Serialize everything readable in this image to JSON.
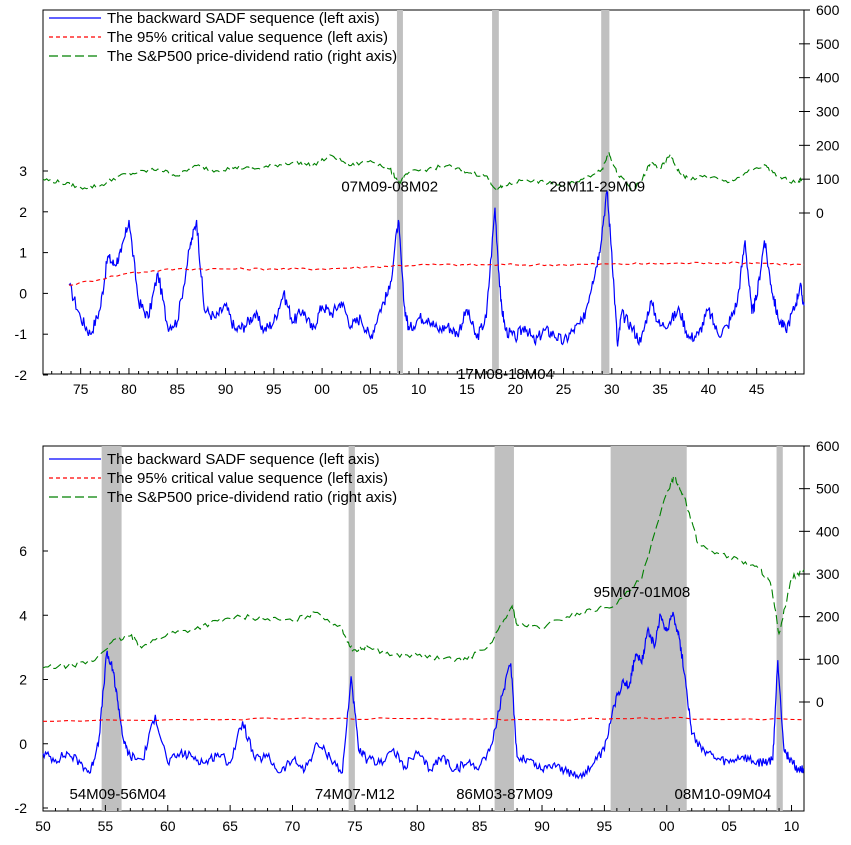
{
  "colors": {
    "sadf": "#0000ff",
    "critical": "#ff0000",
    "ratio": "#008000",
    "shade": "#c0c0c0",
    "axis": "#000000"
  },
  "legend": [
    {
      "label": "The backward SADF sequence (left axis)",
      "style": "solid",
      "color": "#0000ff"
    },
    {
      "label": "The 95% critical value sequence (left axis)",
      "style": "dashed",
      "color": "#ff0000"
    },
    {
      "label": "The S&P500 price-dividend ratio (right axis)",
      "style": "longdash",
      "color": "#008000"
    }
  ],
  "chart_data": [
    {
      "type": "line",
      "x_tick_labels": [
        "75",
        "80",
        "85",
        "90",
        "95",
        "00",
        "05",
        "10",
        "15",
        "20",
        "25",
        "30",
        "35",
        "40",
        "45"
      ],
      "x_range_years": [
        1871.1,
        1949.9
      ],
      "x_ticks_years": [
        1875,
        1880,
        1885,
        1890,
        1895,
        1900,
        1905,
        1910,
        1915,
        1920,
        1925,
        1930,
        1935,
        1940,
        1945
      ],
      "ylim_left": [
        -2,
        7
      ],
      "yticks_left": [
        -2,
        -1,
        0,
        1,
        2,
        3
      ],
      "ylim_right": [
        -100,
        600
      ],
      "yticks_right": [
        0,
        100,
        200,
        300,
        400,
        500,
        600
      ],
      "shaded_periods_years": [
        [
          1907.75,
          1908.17
        ],
        [
          1917.6,
          1918.3
        ],
        [
          1928.9,
          1929.75
        ]
      ],
      "annotations": [
        {
          "text": "07M09-08M02",
          "x": 1907.0,
          "y": 2.6
        },
        {
          "text": "28M11-29M09",
          "x": 1928.5,
          "y": 2.6
        },
        {
          "text": "17M08-18M04",
          "x": 1919.0,
          "y": -2.0
        }
      ],
      "series": [
        {
          "name": "The backward SADF sequence (left axis)",
          "axis": "left",
          "x": [
            1873.8,
            1875,
            1876,
            1877,
            1877.8,
            1878.5,
            1879.2,
            1880,
            1881,
            1882,
            1883,
            1884,
            1885,
            1886.3,
            1887,
            1887.8,
            1889,
            1890,
            1891,
            1892,
            1893,
            1894,
            1895,
            1896,
            1897,
            1898,
            1899,
            1900,
            1901,
            1902,
            1903,
            1904,
            1905,
            1906,
            1907,
            1907.9,
            1908.5,
            1909,
            1910,
            1911,
            1912,
            1913,
            1914,
            1915,
            1916,
            1917,
            1917.9,
            1918.5,
            1919,
            1920,
            1921,
            1922,
            1923,
            1924,
            1925,
            1926,
            1927,
            1928,
            1928.7,
            1929.5,
            1930,
            1930.6,
            1931,
            1932,
            1933,
            1934,
            1935,
            1936,
            1937,
            1938,
            1939,
            1940,
            1941,
            1942,
            1943,
            1943.8,
            1944.5,
            1945,
            1945.8,
            1946.5,
            1947.2,
            1948,
            1949,
            1949.5,
            1949.9
          ],
          "y": [
            0.2,
            -0.6,
            -1.0,
            -0.4,
            0.9,
            0.7,
            1.0,
            1.8,
            -0.2,
            -0.6,
            0.5,
            -0.8,
            -0.7,
            1.1,
            1.8,
            -0.4,
            -0.6,
            -0.3,
            -0.9,
            -0.8,
            -0.5,
            -0.9,
            -0.7,
            0.0,
            -0.7,
            -0.4,
            -0.9,
            -0.3,
            -0.5,
            -0.2,
            -0.8,
            -0.6,
            -1.1,
            -0.4,
            0.1,
            1.8,
            -0.3,
            -0.9,
            -0.6,
            -0.6,
            -0.9,
            -0.8,
            -1.0,
            -0.4,
            -1.1,
            -0.6,
            2.1,
            -0.2,
            -0.9,
            -1.1,
            -0.8,
            -1.2,
            -0.9,
            -1.0,
            -1.2,
            -0.9,
            -0.7,
            0.3,
            1.0,
            2.5,
            1.0,
            -1.3,
            -0.5,
            -0.8,
            -1.2,
            -0.2,
            -0.8,
            -0.7,
            -0.4,
            -1.1,
            -1.0,
            -0.4,
            -1.0,
            -0.8,
            -0.2,
            1.3,
            -0.5,
            -0.1,
            1.3,
            0.2,
            -0.6,
            -0.9,
            -0.3,
            0.2,
            -0.3
          ]
        },
        {
          "name": "The 95% critical value sequence (left axis)",
          "axis": "left",
          "x": [
            1873.8,
            1880,
            1885,
            1890,
            1895,
            1900,
            1905,
            1910,
            1915,
            1920,
            1925,
            1930,
            1935,
            1940,
            1945,
            1949.9
          ],
          "y": [
            0.2,
            0.5,
            0.6,
            0.6,
            0.6,
            0.6,
            0.65,
            0.7,
            0.7,
            0.7,
            0.7,
            0.72,
            0.73,
            0.75,
            0.75,
            0.7
          ]
        },
        {
          "name": "The S&P500 price-dividend ratio (right axis)",
          "axis": "right",
          "x": [
            1871.1,
            1873,
            1875,
            1877,
            1879,
            1881,
            1883,
            1885,
            1887,
            1889,
            1891,
            1893,
            1895,
            1897,
            1899,
            1901,
            1903,
            1905,
            1907,
            1908,
            1909,
            1911,
            1913,
            1915,
            1917,
            1918,
            1919,
            1921,
            1923,
            1925,
            1927,
            1929,
            1929.7,
            1930.5,
            1932,
            1933,
            1934,
            1935,
            1936,
            1937,
            1938,
            1940,
            1942,
            1944,
            1946,
            1947,
            1949,
            1949.9
          ],
          "y": [
            100,
            90,
            75,
            80,
            110,
            120,
            130,
            110,
            140,
            125,
            135,
            130,
            140,
            150,
            140,
            170,
            140,
            155,
            130,
            90,
            120,
            130,
            140,
            120,
            110,
            70,
            80,
            100,
            90,
            80,
            100,
            130,
            180,
            120,
            70,
            90,
            150,
            130,
            170,
            120,
            100,
            110,
            90,
            120,
            140,
            110,
            90,
            100
          ]
        }
      ]
    },
    {
      "type": "line",
      "x_tick_labels": [
        "50",
        "55",
        "60",
        "65",
        "70",
        "75",
        "80",
        "85",
        "90",
        "95",
        "00",
        "05",
        "10"
      ],
      "x_range_years": [
        1950.0,
        2011.0
      ],
      "x_ticks_years": [
        1950,
        1955,
        1960,
        1965,
        1970,
        1975,
        1980,
        1985,
        1990,
        1995,
        2000,
        2005,
        2010
      ],
      "ylim_left": [
        -2,
        8
      ],
      "yticks_left": [
        -2,
        0,
        2,
        4,
        6
      ],
      "ylim_right": [
        -200,
        600
      ],
      "yticks_right": [
        0,
        100,
        200,
        300,
        400,
        500,
        600
      ],
      "shaded_periods_years": [
        [
          1954.7,
          1956.3
        ],
        [
          1974.5,
          1975.0
        ],
        [
          1986.2,
          1987.75
        ],
        [
          1995.5,
          2001.6
        ],
        [
          2008.8,
          2009.3
        ]
      ],
      "annotations": [
        {
          "text": "54M09-56M04",
          "x": 1956.0,
          "y": -1.6
        },
        {
          "text": "74M07-M12",
          "x": 1975.0,
          "y": -1.6
        },
        {
          "text": "86M03-87M09",
          "x": 1987.0,
          "y": -1.6
        },
        {
          "text": "95M07-01M08",
          "x": 1998.0,
          "y": 4.7
        },
        {
          "text": "08M10-09M04",
          "x": 2004.5,
          "y": -1.6
        }
      ],
      "series": [
        {
          "name": "The backward SADF sequence (left axis)",
          "axis": "left",
          "x": [
            1950,
            1951,
            1952,
            1953,
            1953.8,
            1954.5,
            1955.1,
            1955.6,
            1956,
            1956.5,
            1957,
            1958,
            1959,
            1960,
            1961,
            1962,
            1963,
            1964,
            1965,
            1966,
            1967,
            1968,
            1969,
            1970,
            1971,
            1972,
            1973,
            1974,
            1974.7,
            1975.3,
            1976,
            1977,
            1978,
            1979,
            1980,
            1981,
            1982,
            1983,
            1984,
            1985,
            1986,
            1986.8,
            1987.5,
            1988,
            1989,
            1990,
            1991,
            1992,
            1993,
            1994,
            1995,
            1995.8,
            1996.5,
            1997,
            1997.5,
            1998,
            1998.5,
            1999,
            1999.5,
            2000,
            2000.5,
            2001,
            2001.5,
            2002,
            2003,
            2004,
            2005,
            2006,
            2007,
            2007.8,
            2008.5,
            2008.9,
            2009.4,
            2009.9,
            2010.5,
            2011
          ],
          "y": [
            -0.3,
            -0.5,
            -0.3,
            -0.6,
            -0.9,
            0.2,
            2.8,
            2.3,
            1.3,
            0.0,
            -0.4,
            -0.5,
            0.9,
            -0.6,
            -0.3,
            -0.4,
            -0.6,
            -0.3,
            -0.6,
            0.7,
            -0.5,
            -0.4,
            -0.9,
            -0.5,
            -0.8,
            0.0,
            -0.4,
            -0.9,
            2.1,
            -0.2,
            -0.5,
            -0.6,
            -0.2,
            -0.7,
            -0.3,
            -0.8,
            -0.4,
            -0.8,
            -0.6,
            -0.7,
            0.0,
            1.5,
            2.5,
            -0.4,
            -0.5,
            -0.8,
            -0.6,
            -0.9,
            -1.0,
            -0.7,
            -0.2,
            1.2,
            2.0,
            1.8,
            2.8,
            2.5,
            3.6,
            3.0,
            4.0,
            3.5,
            4.1,
            3.3,
            2.0,
            0.3,
            -0.2,
            -0.5,
            -0.6,
            -0.4,
            -0.6,
            -0.6,
            -0.5,
            2.6,
            -0.2,
            -0.5,
            -0.8,
            -0.8
          ]
        },
        {
          "name": "The 95% critical value sequence (left axis)",
          "axis": "left",
          "x": [
            1950,
            1960,
            1970,
            1980,
            1990,
            2000,
            2011
          ],
          "y": [
            0.7,
            0.75,
            0.78,
            0.78,
            0.75,
            0.8,
            0.75
          ]
        },
        {
          "name": "The S&P500 price-dividend ratio (right axis)",
          "axis": "right",
          "x": [
            1950,
            1952,
            1954,
            1955.5,
            1957,
            1958,
            1960,
            1962,
            1964,
            1966,
            1968,
            1970,
            1972,
            1974,
            1974.8,
            1976,
            1978,
            1980,
            1982,
            1984,
            1986,
            1987.6,
            1988,
            1990,
            1992,
            1994,
            1996,
            1998,
            2000,
            2000.6,
            2001.5,
            2002.5,
            2004,
            2006,
            2007.5,
            2008.3,
            2009,
            2010,
            2011
          ],
          "y": [
            80,
            85,
            95,
            140,
            155,
            130,
            160,
            170,
            190,
            200,
            195,
            190,
            210,
            170,
            120,
            130,
            110,
            110,
            100,
            100,
            140,
            225,
            180,
            175,
            200,
            215,
            230,
            290,
            490,
            530,
            475,
            370,
            350,
            330,
            310,
            280,
            160,
            290,
            310
          ]
        }
      ]
    }
  ]
}
